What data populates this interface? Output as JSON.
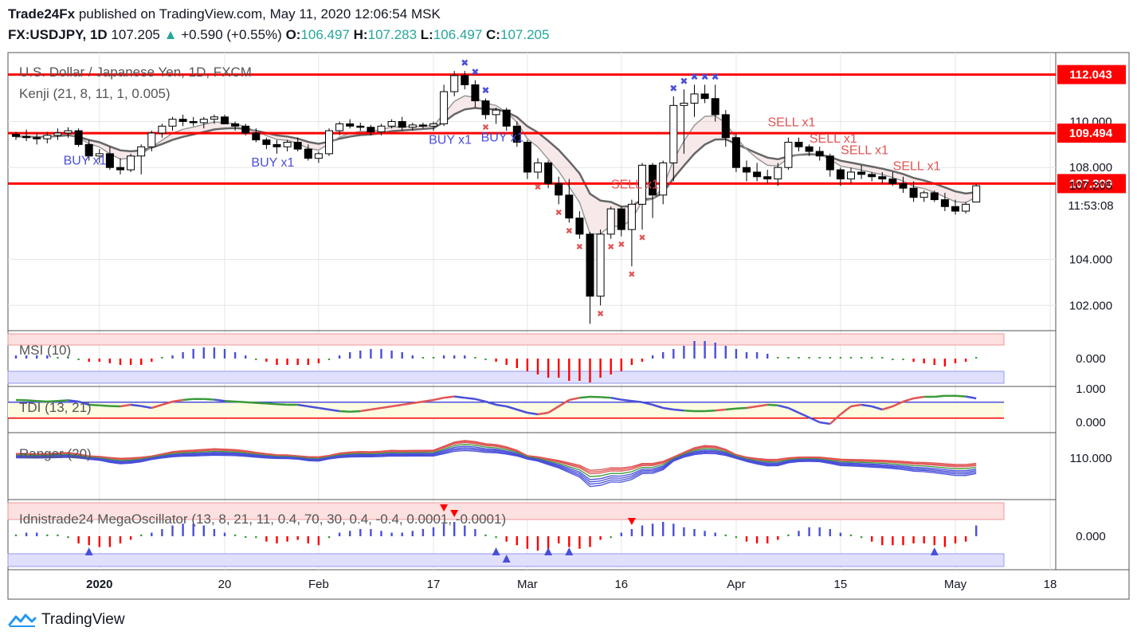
{
  "header": {
    "publisher": "Trade24Fx",
    "published_text": "published on TradingView.com, May 11, 2020 12:06:54 MSK",
    "symbol": "FX:USDJPY, 1D",
    "last": "107.205",
    "arrow": "▲",
    "change": "+0.590 (+0.55%)",
    "o_label": "O:",
    "o_value": "106.497",
    "h_label": "H:",
    "h_value": "107.283",
    "l_label": "L:",
    "l_value": "106.497",
    "c_label": "C:",
    "c_value": "107.205"
  },
  "footer": {
    "brand": "TradingView"
  },
  "colors": {
    "red": "#ff0000",
    "blue": "#4a4fd9",
    "green": "#3a9a3a",
    "bull": "#ffffff",
    "bear": "#000000",
    "grid": "#e6e6e6"
  },
  "chart_data": [
    {
      "type": "candlestick",
      "title": "U.S. Dollar / Japanese Yen, 1D, FXCM",
      "indicator": "Kenji (21, 8, 11, 1, 0.005)",
      "ylim": [
        100.9,
        113.0
      ],
      "y_ticks": [
        "102.000",
        "104.000",
        "108.000",
        "110.000"
      ],
      "x_ticks": [
        "2020",
        "20",
        "Feb",
        "17",
        "Mar",
        "16",
        "Apr",
        "15",
        "May",
        "18"
      ],
      "horizontal_levels": [
        {
          "value": 112.043,
          "label": "112.043"
        },
        {
          "value": 109.494,
          "label": "109.494"
        },
        {
          "value": 107.3,
          "label": "107.300"
        }
      ],
      "last_price": {
        "value": 107.205,
        "label": "107.205",
        "countdown": "11:53:08"
      },
      "candles": [
        [
          109.45,
          109.55,
          109.2,
          109.35
        ],
        [
          109.35,
          109.65,
          109.15,
          109.3
        ],
        [
          109.3,
          109.5,
          109.0,
          109.25
        ],
        [
          109.25,
          109.55,
          109.05,
          109.4
        ],
        [
          109.4,
          109.7,
          109.2,
          109.5
        ],
        [
          109.5,
          109.75,
          109.3,
          109.6
        ],
        [
          109.6,
          109.7,
          108.9,
          109.0
        ],
        [
          109.0,
          109.2,
          108.3,
          108.5
        ],
        [
          108.5,
          108.8,
          108.2,
          108.6
        ],
        [
          108.6,
          108.9,
          107.9,
          108.0
        ],
        [
          108.0,
          108.4,
          107.7,
          107.9
        ],
        [
          107.9,
          108.6,
          107.8,
          108.5
        ],
        [
          108.5,
          109.0,
          107.7,
          108.9
        ],
        [
          108.9,
          109.6,
          108.7,
          109.5
        ],
        [
          109.5,
          109.9,
          109.3,
          109.8
        ],
        [
          109.8,
          110.2,
          109.6,
          110.1
        ],
        [
          110.1,
          110.3,
          109.8,
          110.0
        ],
        [
          110.0,
          110.2,
          109.8,
          109.95
        ],
        [
          109.95,
          110.2,
          109.7,
          110.1
        ],
        [
          110.1,
          110.3,
          109.9,
          110.2
        ],
        [
          110.2,
          110.3,
          109.9,
          109.9
        ],
        [
          109.9,
          110.0,
          109.6,
          109.8
        ],
        [
          109.8,
          109.9,
          109.4,
          109.5
        ],
        [
          109.5,
          109.7,
          109.1,
          109.2
        ],
        [
          109.2,
          109.3,
          108.8,
          109.0
        ],
        [
          109.0,
          109.2,
          108.6,
          108.9
        ],
        [
          108.9,
          109.2,
          108.7,
          109.1
        ],
        [
          109.1,
          109.3,
          108.7,
          108.8
        ],
        [
          108.8,
          109.0,
          108.3,
          108.4
        ],
        [
          108.4,
          108.7,
          108.2,
          108.6
        ],
        [
          108.6,
          109.7,
          108.5,
          109.6
        ],
        [
          109.6,
          110.0,
          109.4,
          109.9
        ],
        [
          109.9,
          110.1,
          109.7,
          109.8
        ],
        [
          109.8,
          109.95,
          109.6,
          109.75
        ],
        [
          109.75,
          109.85,
          109.4,
          109.55
        ],
        [
          109.55,
          109.9,
          109.4,
          109.8
        ],
        [
          109.8,
          110.1,
          109.7,
          110.0
        ],
        [
          110.0,
          110.2,
          109.6,
          109.75
        ],
        [
          109.75,
          109.95,
          109.6,
          109.85
        ],
        [
          109.85,
          109.95,
          109.7,
          109.8
        ],
        [
          109.8,
          110.0,
          109.6,
          109.9
        ],
        [
          109.9,
          111.6,
          109.8,
          111.3
        ],
        [
          111.3,
          112.2,
          111.1,
          112.0
        ],
        [
          112.0,
          112.2,
          111.4,
          111.6
        ],
        [
          111.6,
          111.8,
          110.6,
          110.9
        ],
        [
          110.9,
          111.0,
          110.1,
          110.3
        ],
        [
          110.3,
          110.6,
          109.9,
          110.5
        ],
        [
          110.5,
          110.6,
          109.6,
          109.8
        ],
        [
          109.8,
          110.0,
          108.9,
          109.1
        ],
        [
          109.1,
          109.2,
          107.5,
          107.8
        ],
        [
          107.8,
          108.4,
          107.5,
          108.2
        ],
        [
          108.2,
          108.3,
          107.1,
          107.3
        ],
        [
          107.3,
          107.6,
          106.4,
          106.8
        ],
        [
          106.8,
          107.5,
          105.6,
          105.8
        ],
        [
          105.8,
          106.1,
          104.9,
          105.1
        ],
        [
          105.1,
          105.2,
          101.2,
          102.4
        ],
        [
          102.4,
          105.3,
          102.0,
          105.1
        ],
        [
          105.1,
          106.3,
          104.9,
          106.2
        ],
        [
          106.2,
          106.3,
          105.0,
          105.3
        ],
        [
          105.3,
          106.6,
          103.7,
          106.4
        ],
        [
          106.4,
          108.2,
          105.3,
          108.1
        ],
        [
          108.1,
          108.2,
          105.8,
          106.8
        ],
        [
          106.8,
          108.3,
          106.4,
          108.2
        ],
        [
          108.2,
          111.1,
          107.4,
          110.7
        ],
        [
          110.7,
          111.4,
          108.6,
          110.8
        ],
        [
          110.8,
          111.6,
          110.2,
          111.2
        ],
        [
          111.2,
          111.6,
          110.8,
          111.0
        ],
        [
          111.0,
          111.6,
          110.0,
          110.3
        ],
        [
          110.3,
          110.5,
          108.9,
          109.3
        ],
        [
          109.3,
          109.5,
          107.8,
          108.0
        ],
        [
          108.0,
          108.3,
          107.4,
          107.8
        ],
        [
          107.8,
          108.2,
          107.4,
          107.6
        ],
        [
          107.6,
          107.9,
          107.3,
          107.5
        ],
        [
          107.5,
          108.2,
          107.2,
          108.0
        ],
        [
          108.0,
          109.3,
          107.9,
          109.1
        ],
        [
          109.1,
          109.3,
          108.7,
          108.9
        ],
        [
          108.9,
          109.0,
          108.5,
          108.7
        ],
        [
          108.7,
          108.9,
          108.3,
          108.5
        ],
        [
          108.5,
          108.6,
          107.6,
          107.9
        ],
        [
          107.9,
          108.0,
          107.2,
          107.5
        ],
        [
          107.5,
          108.0,
          107.3,
          107.8
        ],
        [
          107.8,
          108.1,
          107.5,
          107.7
        ],
        [
          107.7,
          107.8,
          107.4,
          107.6
        ],
        [
          107.6,
          107.8,
          107.3,
          107.5
        ],
        [
          107.5,
          107.8,
          107.2,
          107.3
        ],
        [
          107.3,
          107.6,
          106.9,
          107.1
        ],
        [
          107.1,
          107.4,
          106.5,
          106.7
        ],
        [
          106.7,
          107.0,
          106.5,
          106.9
        ],
        [
          106.9,
          107.0,
          106.5,
          106.6
        ],
        [
          106.6,
          106.9,
          106.1,
          106.3
        ],
        [
          106.3,
          106.6,
          105.95,
          106.1
        ],
        [
          106.1,
          106.5,
          106.0,
          106.4
        ],
        [
          106.497,
          107.283,
          106.497,
          107.205
        ]
      ],
      "buy_signals": [
        {
          "label": "BUY x1"
        },
        {
          "label": "BUY x1"
        },
        {
          "label": "BUY x1"
        },
        {
          "label": "BUY x1"
        }
      ],
      "sell_signals": [
        {
          "label": "SELL x1"
        },
        {
          "label": "SELL x1"
        },
        {
          "label": "SELL x1"
        },
        {
          "label": "SELL x1"
        },
        {
          "label": "SELL x1"
        }
      ]
    },
    {
      "type": "bar",
      "title": "MSI (10)",
      "y_ticks": [
        "0.000"
      ],
      "values": [
        0.1,
        0.1,
        0.1,
        0.1,
        0.05,
        0.05,
        -0.05,
        -0.1,
        -0.1,
        -0.15,
        -0.2,
        -0.2,
        -0.2,
        -0.1,
        0.05,
        0.1,
        0.2,
        0.3,
        0.35,
        0.35,
        0.3,
        0.2,
        0.1,
        0,
        -0.1,
        -0.2,
        -0.2,
        -0.2,
        -0.2,
        -0.15,
        -0.05,
        0.1,
        0.2,
        0.25,
        0.3,
        0.3,
        0.25,
        0.2,
        0.1,
        0.05,
        0.05,
        0.1,
        0.1,
        0.1,
        0.05,
        0,
        -0.1,
        -0.2,
        -0.3,
        -0.4,
        -0.5,
        -0.6,
        -0.6,
        -0.7,
        -0.7,
        -0.75,
        -0.6,
        -0.5,
        -0.4,
        -0.2,
        -0.1,
        0.1,
        0.2,
        0.3,
        0.4,
        0.55,
        0.55,
        0.5,
        0.4,
        0.3,
        0.2,
        0.2,
        0.15,
        0.05,
        0.05,
        0.05,
        0.05,
        0.05,
        0.05,
        0.05,
        0.05,
        0.05,
        0.05,
        0.05,
        0,
        -0.05,
        -0.1,
        -0.15,
        -0.2,
        -0.25,
        -0.15,
        -0.1,
        0.05
      ]
    },
    {
      "type": "line",
      "title": "TDI (13, 21)",
      "y_ticks": [
        "1.000",
        "0.000"
      ],
      "values": [
        0.75,
        0.74,
        0.72,
        0.7,
        0.72,
        0.74,
        0.7,
        0.6,
        0.58,
        0.56,
        0.55,
        0.6,
        0.56,
        0.5,
        0.6,
        0.7,
        0.75,
        0.78,
        0.78,
        0.76,
        0.72,
        0.7,
        0.68,
        0.66,
        0.64,
        0.62,
        0.6,
        0.6,
        0.55,
        0.5,
        0.45,
        0.4,
        0.38,
        0.4,
        0.45,
        0.5,
        0.55,
        0.6,
        0.65,
        0.7,
        0.75,
        0.82,
        0.86,
        0.82,
        0.78,
        0.7,
        0.6,
        0.55,
        0.45,
        0.35,
        0.3,
        0.35,
        0.55,
        0.75,
        0.82,
        0.85,
        0.84,
        0.82,
        0.76,
        0.72,
        0.68,
        0.6,
        0.5,
        0.45,
        0.42,
        0.4,
        0.4,
        0.42,
        0.45,
        0.48,
        0.5,
        0.55,
        0.6,
        0.58,
        0.5,
        0.35,
        0.2,
        0.05,
        0,
        0.3,
        0.55,
        0.6,
        0.55,
        0.45,
        0.55,
        0.7,
        0.8,
        0.85,
        0.85,
        0.88,
        0.88,
        0.86,
        0.8
      ],
      "reference_lines": [
        0.68,
        0.18
      ]
    },
    {
      "type": "line",
      "title": "Ranger (20)",
      "y_ticks": [
        "110.000"
      ],
      "series_count": 8
    },
    {
      "type": "bar",
      "title": "Idnistrade24 MegaOscillator (13, 8, 21, 11, 0.4, 70, 30, 0.4, -0.4, 0.0001, -0.0001)",
      "y_ticks": [
        "0.000"
      ],
      "values": [
        0.05,
        0.1,
        0.1,
        0.05,
        0.05,
        -0.05,
        -0.2,
        -0.25,
        -0.3,
        -0.3,
        -0.2,
        -0.1,
        0.05,
        0.1,
        0.2,
        0.3,
        0.35,
        0.35,
        0.3,
        0.2,
        0.1,
        0.05,
        0,
        -0.05,
        -0.15,
        -0.2,
        -0.15,
        -0.1,
        -0.2,
        -0.25,
        -0.05,
        0.1,
        0.15,
        0.2,
        0.2,
        0.15,
        0.1,
        0.1,
        0.15,
        0.2,
        0.25,
        0.35,
        0.4,
        0.3,
        0.2,
        0.05,
        -0.05,
        -0.15,
        -0.25,
        -0.35,
        -0.4,
        -0.35,
        -0.2,
        -0.3,
        -0.35,
        -0.3,
        -0.1,
        -0.05,
        0.1,
        0.2,
        0.3,
        0.35,
        0.4,
        0.35,
        0.25,
        0.2,
        0.15,
        0.1,
        0.05,
        -0.05,
        -0.15,
        -0.2,
        -0.2,
        -0.1,
        0.05,
        0.15,
        0.25,
        0.25,
        0.2,
        0.1,
        0.05,
        -0.05,
        -0.15,
        -0.25,
        -0.25,
        -0.25,
        -0.2,
        -0.2,
        -0.25,
        -0.3,
        -0.2,
        -0.15,
        0.3
      ]
    }
  ]
}
